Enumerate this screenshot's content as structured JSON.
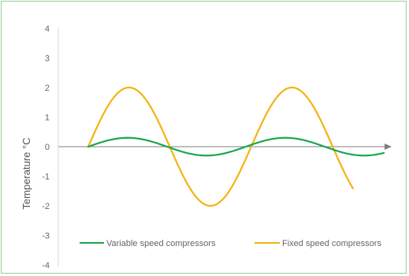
{
  "chart_data": {
    "type": "line",
    "ylabel": "Temperature °C",
    "ylim": [
      -4,
      4
    ],
    "yticks": [
      4,
      3,
      2,
      1,
      0,
      -1,
      -2,
      -3,
      -4
    ],
    "grid": false,
    "legend_position": "bottom",
    "series": [
      {
        "name": "Variable speed compressors",
        "color": "#1aa64f",
        "amplitude": 0.3,
        "x": [
          0,
          0.25,
          0.5,
          0.75,
          1,
          1.25,
          1.5,
          1.75,
          2,
          2.25,
          2.5,
          2.75,
          3,
          3.25,
          3.5,
          3.75,
          4,
          4.25,
          4.5,
          4.75,
          5,
          5.25,
          5.5,
          5.75,
          6,
          6.25,
          6.5,
          6.75,
          7,
          7.25,
          7.5
        ],
        "values": [
          0,
          0.21,
          0.3,
          0.21,
          0,
          -0.21,
          -0.3,
          -0.21,
          0,
          0.21,
          0.3,
          0.21,
          0,
          -0.21,
          -0.3,
          -0.21,
          0,
          0.21,
          0.3,
          0.21,
          0,
          -0.21,
          -0.3,
          -0.21,
          0,
          0.21,
          0.3,
          0.21,
          0,
          -0.21,
          -0.3
        ]
      },
      {
        "name": "Fixed speed compressors",
        "color": "#f5b312",
        "amplitude": 2,
        "x": [
          0,
          0.25,
          0.5,
          0.75,
          1,
          1.25,
          1.5,
          1.75,
          2,
          2.25,
          2.5,
          2.75,
          3,
          3.25,
          3.5,
          3.75,
          4,
          4.25,
          4.5,
          4.75,
          5,
          5.25,
          5.5,
          5.75,
          6,
          6.25,
          6.5,
          6.75,
          7,
          7.25,
          7.5
        ],
        "values": [
          0,
          1.41,
          2,
          1.41,
          0,
          -1.41,
          -2,
          -1.41,
          0,
          1.41,
          2,
          1.41,
          0,
          -1.41,
          -2,
          -1.41,
          0,
          1.41,
          2,
          1.41,
          0,
          -1.41,
          -2,
          -1.41,
          0,
          1.41,
          2,
          1.41,
          0,
          -1.41,
          -2
        ]
      }
    ]
  }
}
